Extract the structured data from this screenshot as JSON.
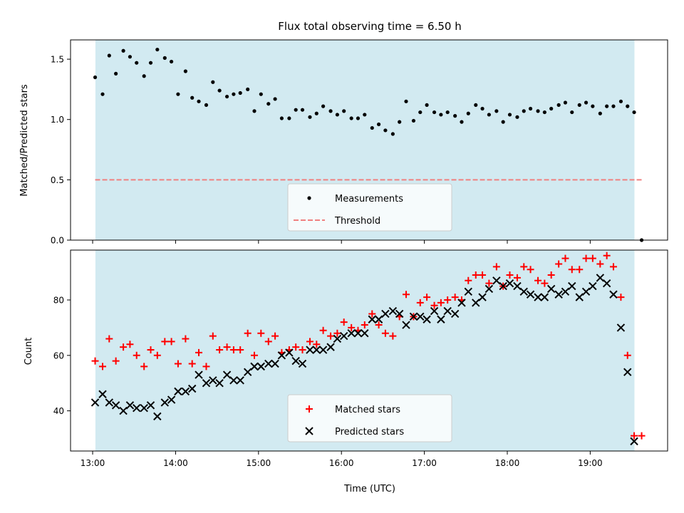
{
  "chart_data": {
    "type": "scatter",
    "title": "Flux total observing time = 6.50 h",
    "xlabel": "Time (UTC)",
    "x_unit": "hour of day UTC",
    "xlim": [
      12.7333,
      19.9333
    ],
    "xticks": [
      {
        "value": 13,
        "label": "13:00"
      },
      {
        "value": 14,
        "label": "14:00"
      },
      {
        "value": 15,
        "label": "15:00"
      },
      {
        "value": 16,
        "label": "16:00"
      },
      {
        "value": 17,
        "label": "17:00"
      },
      {
        "value": 18,
        "label": "18:00"
      },
      {
        "value": 19,
        "label": "19:00"
      }
    ],
    "observing_window": {
      "start": 13.0333,
      "end": 19.5333,
      "color": "#add8e6"
    },
    "top_panel": {
      "ylabel": "Matched/Predicted stars",
      "ylim": [
        0,
        1.66
      ],
      "yticks": [
        "0.0",
        "0.5",
        "1.0",
        "1.5"
      ],
      "legend_location": "lower-center",
      "series": [
        {
          "name": "Measurements",
          "marker": "dot",
          "color": "#000000",
          "x": [
            13.03,
            13.12,
            13.2,
            13.28,
            13.37,
            13.45,
            13.53,
            13.62,
            13.7,
            13.78,
            13.87,
            13.95,
            14.03,
            14.12,
            14.2,
            14.28,
            14.37,
            14.45,
            14.53,
            14.62,
            14.7,
            14.78,
            14.87,
            14.95,
            15.03,
            15.12,
            15.2,
            15.28,
            15.37,
            15.45,
            15.53,
            15.62,
            15.7,
            15.78,
            15.87,
            15.95,
            16.03,
            16.12,
            16.2,
            16.28,
            16.37,
            16.45,
            16.53,
            16.62,
            16.7,
            16.78,
            16.87,
            16.95,
            17.03,
            17.12,
            17.2,
            17.28,
            17.37,
            17.45,
            17.53,
            17.62,
            17.7,
            17.78,
            17.87,
            17.95,
            18.03,
            18.12,
            18.2,
            18.28,
            18.37,
            18.45,
            18.53,
            18.62,
            18.7,
            18.78,
            18.87,
            18.95,
            19.03,
            19.12,
            19.2,
            19.28,
            19.37,
            19.45,
            19.53,
            19.62
          ],
          "y": [
            1.35,
            1.21,
            1.53,
            1.38,
            1.57,
            1.52,
            1.47,
            1.36,
            1.47,
            1.58,
            1.51,
            1.48,
            1.21,
            1.4,
            1.18,
            1.15,
            1.12,
            1.31,
            1.24,
            1.19,
            1.21,
            1.22,
            1.25,
            1.07,
            1.21,
            1.13,
            1.17,
            1.01,
            1.01,
            1.08,
            1.08,
            1.02,
            1.05,
            1.11,
            1.07,
            1.04,
            1.07,
            1.01,
            1.01,
            1.04,
            0.93,
            0.96,
            0.91,
            0.88,
            0.98,
            1.15,
            0.99,
            1.06,
            1.12,
            1.06,
            1.04,
            1.06,
            1.03,
            0.98,
            1.05,
            1.12,
            1.09,
            1.04,
            1.07,
            0.98,
            1.04,
            1.02,
            1.07,
            1.09,
            1.07,
            1.06,
            1.09,
            1.12,
            1.14,
            1.06,
            1.12,
            1.14,
            1.11,
            1.05,
            1.11,
            1.11,
            1.15,
            1.11,
            1.06,
            0.0
          ]
        },
        {
          "name": "Threshold",
          "marker": "dashed-line",
          "color": "#f08080",
          "x": [
            13.03,
            19.62
          ],
          "y": [
            0.5,
            0.5
          ]
        }
      ]
    },
    "bottom_panel": {
      "ylabel": "Count",
      "ylim": [
        25.5,
        98
      ],
      "yticks": [
        "40",
        "60",
        "80"
      ],
      "legend_location": "lower-center",
      "series": [
        {
          "name": "Matched stars",
          "marker": "plus",
          "color": "#ff0000",
          "x": [
            13.03,
            13.12,
            13.2,
            13.28,
            13.37,
            13.45,
            13.53,
            13.62,
            13.7,
            13.78,
            13.87,
            13.95,
            14.03,
            14.12,
            14.2,
            14.28,
            14.37,
            14.45,
            14.53,
            14.62,
            14.7,
            14.78,
            14.87,
            14.95,
            15.03,
            15.12,
            15.2,
            15.28,
            15.37,
            15.45,
            15.53,
            15.62,
            15.7,
            15.78,
            15.87,
            15.95,
            16.03,
            16.12,
            16.2,
            16.28,
            16.37,
            16.45,
            16.53,
            16.62,
            16.7,
            16.78,
            16.87,
            16.95,
            17.03,
            17.12,
            17.2,
            17.28,
            17.37,
            17.45,
            17.53,
            17.62,
            17.7,
            17.78,
            17.87,
            17.95,
            18.03,
            18.12,
            18.2,
            18.28,
            18.37,
            18.45,
            18.53,
            18.62,
            18.7,
            18.78,
            18.87,
            18.95,
            19.03,
            19.12,
            19.2,
            19.28,
            19.37,
            19.45,
            19.53,
            19.62
          ],
          "y": [
            58,
            56,
            66,
            58,
            63,
            64,
            60,
            56,
            62,
            60,
            65,
            65,
            57,
            66,
            57,
            61,
            56,
            67,
            62,
            63,
            62,
            62,
            68,
            60,
            68,
            65,
            67,
            61,
            62,
            63,
            62,
            65,
            64,
            69,
            67,
            68,
            72,
            70,
            69,
            71,
            75,
            71,
            68,
            67,
            74,
            82,
            74,
            79,
            81,
            78,
            79,
            80,
            81,
            80,
            87,
            89,
            89,
            86,
            92,
            85,
            89,
            88,
            92,
            91,
            87,
            86,
            89,
            93,
            95,
            91,
            91,
            95,
            95,
            93,
            96,
            92,
            81,
            60,
            31,
            31
          ]
        },
        {
          "name": "Predicted stars",
          "marker": "x",
          "color": "#000000",
          "x": [
            13.03,
            13.12,
            13.2,
            13.28,
            13.37,
            13.45,
            13.53,
            13.62,
            13.7,
            13.78,
            13.87,
            13.95,
            14.03,
            14.12,
            14.2,
            14.28,
            14.37,
            14.45,
            14.53,
            14.62,
            14.7,
            14.78,
            14.87,
            14.95,
            15.03,
            15.12,
            15.2,
            15.28,
            15.37,
            15.45,
            15.53,
            15.62,
            15.7,
            15.78,
            15.87,
            15.95,
            16.03,
            16.12,
            16.2,
            16.28,
            16.37,
            16.45,
            16.53,
            16.62,
            16.7,
            16.78,
            16.87,
            16.95,
            17.03,
            17.12,
            17.2,
            17.28,
            17.37,
            17.45,
            17.53,
            17.62,
            17.7,
            17.78,
            17.87,
            17.95,
            18.03,
            18.12,
            18.2,
            18.28,
            18.37,
            18.45,
            18.53,
            18.62,
            18.7,
            18.78,
            18.87,
            18.95,
            19.03,
            19.12,
            19.2,
            19.28,
            19.37,
            19.45,
            19.53
          ],
          "y": [
            43,
            46,
            43,
            42,
            40,
            42,
            41,
            41,
            42,
            38,
            43,
            44,
            47,
            47,
            48,
            53,
            50,
            51,
            50,
            53,
            51,
            51,
            54,
            56,
            56,
            57,
            57,
            60,
            61,
            58,
            57,
            62,
            62,
            62,
            63,
            66,
            67,
            68,
            68,
            68,
            73,
            73,
            75,
            76,
            75,
            71,
            74,
            74,
            73,
            76,
            73,
            76,
            75,
            79,
            83,
            79,
            81,
            84,
            87,
            85,
            86,
            85,
            83,
            82,
            81,
            81,
            84,
            82,
            83,
            85,
            81,
            83,
            85,
            88,
            86,
            82,
            70,
            54,
            29
          ]
        }
      ]
    }
  }
}
